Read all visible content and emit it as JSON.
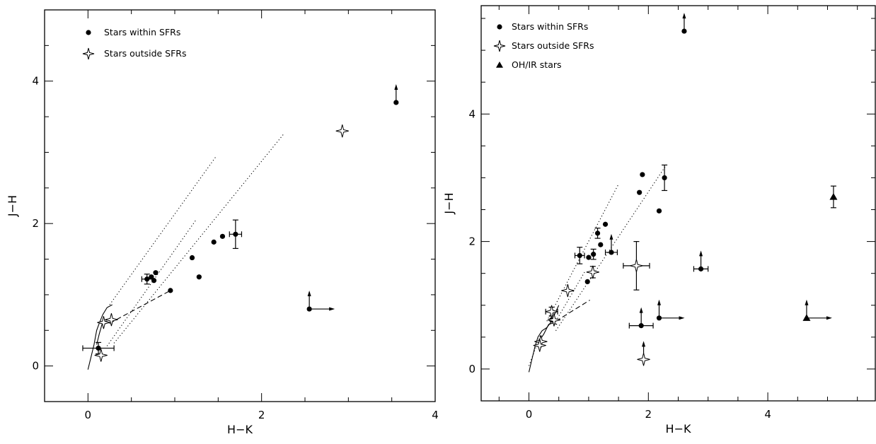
{
  "chart_data": [
    {
      "type": "scatter",
      "xlabel": "H−K",
      "ylabel": "J−H",
      "xlim": [
        -0.5,
        4.0
      ],
      "ylim": [
        -0.5,
        5.0
      ],
      "xticks": [
        0,
        2,
        4
      ],
      "yticks": [
        0,
        2,
        4
      ],
      "xtick_labels": [
        "0",
        "2",
        "4"
      ],
      "ytick_labels": [
        "0",
        "2",
        "4"
      ],
      "legend_position": "top-left",
      "legend": [
        {
          "label": "Stars within SFRs",
          "marker": "filled-circle"
        },
        {
          "label": "Stars outside SFRs",
          "marker": "open-star"
        }
      ],
      "series": [
        {
          "name": "Stars within SFRs",
          "marker": "filled-circle",
          "points": [
            {
              "x": 3.55,
              "y": 3.7,
              "lower_limit_y": true
            },
            {
              "x": 2.55,
              "y": 0.8,
              "lower_limit_y": true,
              "lower_limit_x": true
            },
            {
              "x": 1.7,
              "y": 1.85,
              "yerr": 0.2,
              "xerr": 0.07
            },
            {
              "x": 1.55,
              "y": 1.82
            },
            {
              "x": 1.45,
              "y": 1.74
            },
            {
              "x": 1.2,
              "y": 1.52
            },
            {
              "x": 1.28,
              "y": 1.25
            },
            {
              "x": 0.95,
              "y": 1.06
            },
            {
              "x": 0.78,
              "y": 1.31
            },
            {
              "x": 0.68,
              "y": 1.22,
              "yerr": 0.07,
              "xerr": 0.06
            },
            {
              "x": 0.73,
              "y": 1.25
            },
            {
              "x": 0.76,
              "y": 1.2
            },
            {
              "x": 0.12,
              "y": 0.25,
              "yerr": 0.08,
              "xerr": 0.18
            }
          ]
        },
        {
          "name": "Stars outside SFRs",
          "marker": "open-star",
          "points": [
            {
              "x": 2.93,
              "y": 3.3
            },
            {
              "x": 0.27,
              "y": 0.65
            },
            {
              "x": 0.18,
              "y": 0.61
            },
            {
              "x": 0.15,
              "y": 0.15
            }
          ]
        }
      ]
    },
    {
      "type": "scatter",
      "xlabel": "H−K",
      "ylabel": "J−H",
      "xlim": [
        -0.8,
        5.8
      ],
      "ylim": [
        -0.5,
        5.7
      ],
      "xticks": [
        0,
        2,
        4
      ],
      "yticks": [
        0,
        2,
        4
      ],
      "xtick_labels": [
        "0",
        "2",
        "4"
      ],
      "ytick_labels": [
        "0",
        "2",
        "4"
      ],
      "legend_position": "top-left",
      "legend": [
        {
          "label": "Stars within SFRs",
          "marker": "filled-circle"
        },
        {
          "label": "Stars outside SFRs",
          "marker": "open-star"
        },
        {
          "label": "OH/IR stars",
          "marker": "filled-triangle"
        }
      ],
      "series": [
        {
          "name": "Stars within SFRs",
          "marker": "filled-circle",
          "points": [
            {
              "x": 2.6,
              "y": 5.3,
              "lower_limit_y": true
            },
            {
              "x": 1.9,
              "y": 3.05
            },
            {
              "x": 1.85,
              "y": 2.77
            },
            {
              "x": 2.27,
              "y": 3.0,
              "yerr": 0.2
            },
            {
              "x": 2.18,
              "y": 2.48
            },
            {
              "x": 1.28,
              "y": 2.27
            },
            {
              "x": 1.15,
              "y": 2.13,
              "yerr": 0.08
            },
            {
              "x": 1.2,
              "y": 1.95
            },
            {
              "x": 1.38,
              "y": 1.83,
              "lower_limit_y": true,
              "xerr": 0.1
            },
            {
              "x": 0.85,
              "y": 1.78,
              "yerr": 0.13,
              "xerr": 0.08
            },
            {
              "x": 1.0,
              "y": 1.75
            },
            {
              "x": 1.08,
              "y": 1.8,
              "yerr": 0.08
            },
            {
              "x": 0.98,
              "y": 1.37
            },
            {
              "x": 2.88,
              "y": 1.57,
              "lower_limit_y": true,
              "xerr": 0.12
            },
            {
              "x": 0.38,
              "y": 0.77
            },
            {
              "x": 1.88,
              "y": 0.68,
              "lower_limit_y": true,
              "xerr": 0.2
            },
            {
              "x": 2.18,
              "y": 0.8,
              "lower_limit_y": true,
              "lower_limit_x": true
            }
          ]
        },
        {
          "name": "Stars outside SFRs",
          "marker": "open-star",
          "points": [
            {
              "x": 1.8,
              "y": 1.62,
              "xerr": 0.22,
              "yerr": 0.38
            },
            {
              "x": 1.07,
              "y": 1.52,
              "yerr": 0.09
            },
            {
              "x": 0.65,
              "y": 1.23
            },
            {
              "x": 0.38,
              "y": 0.9,
              "xerr": 0.1,
              "yerr": 0.07
            },
            {
              "x": 0.42,
              "y": 0.77
            },
            {
              "x": 0.2,
              "y": 0.43
            },
            {
              "x": 0.18,
              "y": 0.37
            },
            {
              "x": 1.92,
              "y": 0.15,
              "lower_limit_y": true
            }
          ]
        },
        {
          "name": "OH/IR stars",
          "marker": "filled-triangle",
          "points": [
            {
              "x": 5.1,
              "y": 2.7,
              "yerr": 0.17
            },
            {
              "x": 4.65,
              "y": 0.8,
              "lower_limit_y": true,
              "lower_limit_x": true
            }
          ]
        }
      ]
    }
  ]
}
